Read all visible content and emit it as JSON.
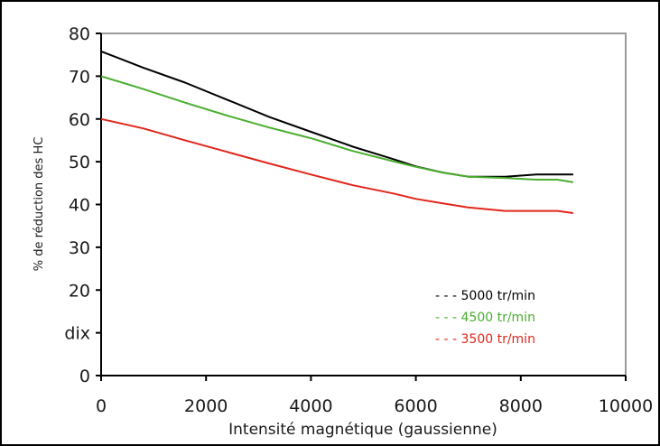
{
  "chart_data": {
    "type": "line",
    "title": "",
    "xlabel": "Intensité magnétique (gaussienne)",
    "ylabel": "% de réduction des HC",
    "xlim": [
      0,
      10000
    ],
    "ylim": [
      0,
      80
    ],
    "x_ticks": [
      "0",
      "2000",
      "4000",
      "6000",
      "8000",
      "10000"
    ],
    "y_ticks": [
      "0",
      "10",
      "20",
      "30",
      "40",
      "50",
      "60",
      "70",
      "80"
    ],
    "y_tick_labels": [
      "0",
      "dix",
      "20",
      "30",
      "40",
      "50",
      "60",
      "70",
      "80"
    ],
    "grid": false,
    "legend_position": "bottom-right",
    "series": [
      {
        "name": "- - - 5000 tr/min",
        "color": "#000000",
        "points": [
          [
            0,
            75.8
          ],
          [
            800,
            72.0
          ],
          [
            1600,
            68.5
          ],
          [
            2400,
            64.5
          ],
          [
            3200,
            60.5
          ],
          [
            4000,
            57.0
          ],
          [
            4800,
            53.5
          ],
          [
            5600,
            50.5
          ],
          [
            6000,
            48.9
          ],
          [
            6500,
            47.5
          ],
          [
            7000,
            46.5
          ],
          [
            7700,
            46.5
          ],
          [
            8300,
            47.0
          ],
          [
            9000,
            47.0
          ]
        ]
      },
      {
        "name": "- - - 4500 tr/min",
        "color": "#4aae2f",
        "points": [
          [
            0,
            70.0
          ],
          [
            800,
            67.0
          ],
          [
            1600,
            63.8
          ],
          [
            2400,
            60.8
          ],
          [
            3200,
            58.0
          ],
          [
            4000,
            55.5
          ],
          [
            4800,
            52.5
          ],
          [
            5600,
            50.0
          ],
          [
            6000,
            48.8
          ],
          [
            6500,
            47.5
          ],
          [
            7000,
            46.5
          ],
          [
            7700,
            46.2
          ],
          [
            8300,
            45.8
          ],
          [
            8700,
            45.8
          ],
          [
            9000,
            45.2
          ]
        ]
      },
      {
        "name": "- - - 3500 tr/min",
        "color": "#e1261c",
        "points": [
          [
            0,
            60.0
          ],
          [
            800,
            57.8
          ],
          [
            1600,
            55.0
          ],
          [
            2400,
            52.3
          ],
          [
            3200,
            49.6
          ],
          [
            4000,
            47.0
          ],
          [
            4800,
            44.5
          ],
          [
            5600,
            42.5
          ],
          [
            6000,
            41.3
          ],
          [
            6500,
            40.3
          ],
          [
            7000,
            39.3
          ],
          [
            7700,
            38.5
          ],
          [
            8300,
            38.5
          ],
          [
            8700,
            38.5
          ],
          [
            9000,
            38.0
          ]
        ]
      }
    ]
  }
}
